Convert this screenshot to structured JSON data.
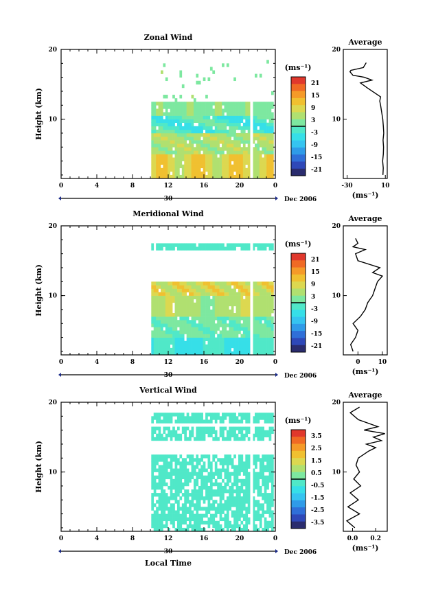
{
  "colors": {
    "scale": [
      "#2a2c6e",
      "#2e48b8",
      "#2f6fd8",
      "#2f9be8",
      "#35c4f0",
      "#36dfe8",
      "#50e8c8",
      "#7de8a0",
      "#b0e070",
      "#dcd850",
      "#f0c030",
      "#f59a28",
      "#f06a24",
      "#e0382c"
    ]
  },
  "figure": {
    "xlabel": "Local Time"
  },
  "chart_data": [
    {
      "type": "heatmap",
      "name": "zonal",
      "title": "Zonal Wind",
      "ylabel": "Height (km)",
      "x_ticks": [
        "0",
        "4",
        "8",
        "12",
        "16",
        "20",
        "0"
      ],
      "y_ticks": [
        "20",
        "10"
      ],
      "xlim": [
        0,
        24
      ],
      "ylim": [
        1.5,
        20
      ],
      "date_day": "30",
      "date_label": "Dec 2006",
      "colorbar": {
        "unit": "(ms⁻¹)",
        "ticks": [
          "21",
          "15",
          "9",
          "3",
          "-3",
          "-9",
          "-15",
          "-21"
        ],
        "range": [
          -24,
          24
        ]
      },
      "avg": {
        "title": "Average",
        "ticks": [
          "-30",
          "10"
        ],
        "range": [
          -34,
          12
        ],
        "xlabel": "(ms⁻¹)",
        "profile": [
          [
            2,
            7.5
          ],
          [
            3,
            7.8
          ],
          [
            4,
            7.2
          ],
          [
            5,
            7.9
          ],
          [
            6,
            8.1
          ],
          [
            7,
            7.6
          ],
          [
            8,
            8.3
          ],
          [
            9,
            7.9
          ],
          [
            10,
            7.3
          ],
          [
            11,
            6.2
          ],
          [
            12,
            5.0
          ],
          [
            12.6,
            4.2
          ],
          [
            13.2,
            5.0
          ],
          [
            14.5,
            -9
          ],
          [
            15.2,
            -16
          ],
          [
            15.6,
            -4
          ],
          [
            16,
            -12
          ],
          [
            16.3,
            -24
          ],
          [
            16.8,
            -27
          ],
          [
            17,
            -26
          ],
          [
            17.4,
            -13
          ],
          [
            18.1,
            -10
          ]
        ]
      },
      "valid_data": {
        "x": [
          10.1,
          23.8
        ],
        "gaps": [
          [
            21.2,
            21.5
          ]
        ]
      }
    },
    {
      "type": "heatmap",
      "name": "meridional",
      "title": "Meridional Wind",
      "ylabel": "Height (km)",
      "x_ticks": [
        "0",
        "4",
        "8",
        "12",
        "16",
        "20",
        "0"
      ],
      "y_ticks": [
        "20",
        "10"
      ],
      "xlim": [
        0,
        24
      ],
      "ylim": [
        1.5,
        20
      ],
      "date_day": "30",
      "date_label": "Dec 2006",
      "colorbar": {
        "unit": "(ms⁻¹)",
        "ticks": [
          "21",
          "15",
          "9",
          "3",
          "-3",
          "-9",
          "-15",
          "-21"
        ],
        "range": [
          -24,
          24
        ]
      },
      "avg": {
        "title": "Average",
        "ticks": [
          "0",
          "10"
        ],
        "range": [
          -6,
          12
        ],
        "xlabel": "(ms⁻¹)",
        "profile": [
          [
            2,
            -2
          ],
          [
            3,
            -3
          ],
          [
            4,
            -1
          ],
          [
            5,
            0
          ],
          [
            6,
            -2
          ],
          [
            7,
            1
          ],
          [
            8,
            3
          ],
          [
            9,
            4
          ],
          [
            10,
            6
          ],
          [
            11,
            7
          ],
          [
            12,
            8
          ],
          [
            12.8,
            10
          ],
          [
            13.3,
            6
          ],
          [
            14,
            9
          ],
          [
            15,
            0
          ],
          [
            16,
            -1
          ],
          [
            16.6,
            3
          ],
          [
            17,
            -2
          ],
          [
            17.5,
            0
          ],
          [
            18.2,
            -1
          ]
        ]
      },
      "valid_data": {
        "x": [
          10.1,
          23.8
        ],
        "gaps": [
          [
            21.2,
            21.5
          ]
        ]
      }
    },
    {
      "type": "heatmap",
      "name": "vertical",
      "title": "Vertical Wind",
      "ylabel": "Height (km)",
      "x_ticks": [
        "0",
        "4",
        "8",
        "12",
        "16",
        "20",
        "0"
      ],
      "y_ticks": [
        "20",
        "10"
      ],
      "xlim": [
        0,
        24
      ],
      "ylim": [
        1.5,
        20
      ],
      "date_day": "30",
      "date_label": "Dec 2006",
      "colorbar": {
        "unit": "(ms⁻¹)",
        "ticks": [
          "3.5",
          "2.5",
          "1.5",
          "0.5",
          "-0.5",
          "-1.5",
          "-2.5",
          "-3.5"
        ],
        "range": [
          -4,
          4
        ]
      },
      "avg": {
        "title": "Average",
        "ticks": [
          "0.0",
          "0.2"
        ],
        "range": [
          -0.08,
          0.3
        ],
        "xlabel": "(ms⁻¹)",
        "profile": [
          [
            2,
            0.02
          ],
          [
            3,
            -0.05
          ],
          [
            4,
            0.06
          ],
          [
            5,
            -0.04
          ],
          [
            6,
            0.05
          ],
          [
            7,
            -0.02
          ],
          [
            8,
            0.07
          ],
          [
            9,
            0.01
          ],
          [
            10,
            0.06
          ],
          [
            11,
            0.03
          ],
          [
            12,
            0.05
          ],
          [
            13,
            0.14
          ],
          [
            13.5,
            0.2
          ],
          [
            14,
            0.12
          ],
          [
            14.5,
            0.25
          ],
          [
            15,
            0.18
          ],
          [
            15.5,
            0.28
          ],
          [
            16,
            0.1
          ],
          [
            16.5,
            0.22
          ],
          [
            17.5,
            0.05
          ],
          [
            18.5,
            -0.02
          ],
          [
            19.3,
            0.06
          ]
        ]
      },
      "valid_data": {
        "x": [
          10.1,
          23.8
        ],
        "gaps": [
          [
            21.2,
            21.5
          ]
        ]
      }
    }
  ]
}
